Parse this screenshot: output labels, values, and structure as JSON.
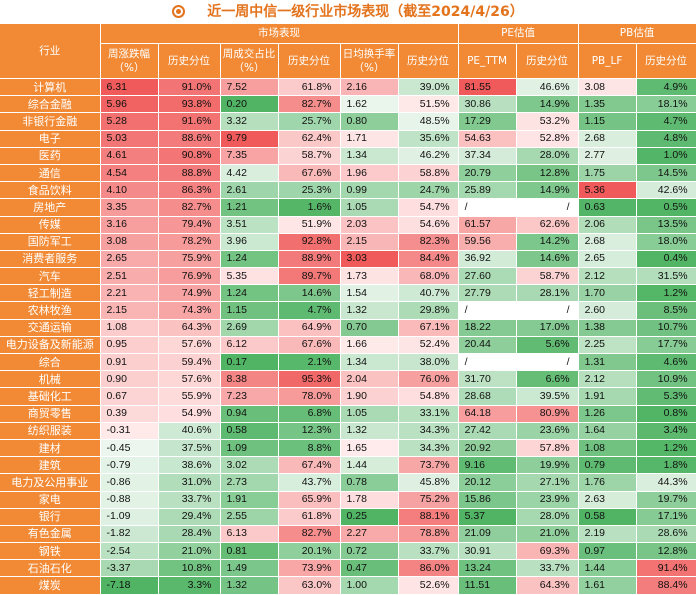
{
  "title": "近一周中信一级行业市场表现（截至2024/4/26）",
  "groups": {
    "market": "市场表现",
    "pe": "PE估值",
    "pb": "PB估值"
  },
  "headers": {
    "industry": "行业",
    "weekly_change": "周涨跌幅（%）",
    "hist_pct_1": "历史分位",
    "turnover_ratio": "周成交占比（%）",
    "hist_pct_2": "历史分位",
    "daily_turnover": "日均换手率（%）",
    "hist_pct_3": "历史分位",
    "pe_ttm": "PE_TTM",
    "hist_pct_4": "历史分位",
    "pb_lf": "PB_LF",
    "hist_pct_5": "历史分位"
  },
  "colors": {
    "header": "#f28a35",
    "title": "#e3731c"
  },
  "rows": [
    [
      "计算机",
      "6.31",
      "91.0%",
      "7.52",
      "61.8%",
      "2.16",
      "39.0%",
      "81.55",
      "46.6%",
      "3.08",
      "4.9%"
    ],
    [
      "综合金融",
      "5.96",
      "93.8%",
      "0.20",
      "82.7%",
      "1.62",
      "51.5%",
      "30.86",
      "14.9%",
      "1.35",
      "18.1%"
    ],
    [
      "非银行金融",
      "5.28",
      "91.6%",
      "3.32",
      "25.7%",
      "0.80",
      "48.5%",
      "17.29",
      "53.2%",
      "1.15",
      "4.7%"
    ],
    [
      "电子",
      "5.03",
      "88.6%",
      "9.79",
      "62.4%",
      "1.71",
      "35.6%",
      "54.63",
      "52.8%",
      "2.68",
      "4.8%"
    ],
    [
      "医药",
      "4.61",
      "90.8%",
      "7.35",
      "58.7%",
      "1.34",
      "46.2%",
      "37.34",
      "28.0%",
      "2.77",
      "1.0%"
    ],
    [
      "通信",
      "4.54",
      "88.8%",
      "4.42",
      "67.6%",
      "1.96",
      "58.8%",
      "20.79",
      "12.8%",
      "1.75",
      "14.5%"
    ],
    [
      "食品饮料",
      "4.10",
      "86.3%",
      "2.61",
      "25.3%",
      "0.99",
      "24.7%",
      "25.89",
      "14.9%",
      "5.36",
      "42.6%"
    ],
    [
      "房地产",
      "3.35",
      "82.7%",
      "1.21",
      "1.6%",
      "1.05",
      "54.7%",
      "/",
      "/",
      "0.63",
      "0.5%"
    ],
    [
      "传媒",
      "3.16",
      "79.4%",
      "3.51",
      "51.9%",
      "2.03",
      "54.6%",
      "61.57",
      "62.6%",
      "2.06",
      "13.5%"
    ],
    [
      "国防军工",
      "3.08",
      "78.2%",
      "3.96",
      "92.8%",
      "2.15",
      "82.3%",
      "59.56",
      "14.2%",
      "2.68",
      "18.0%"
    ],
    [
      "消费者服务",
      "2.65",
      "75.9%",
      "1.24",
      "88.9%",
      "3.03",
      "84.4%",
      "36.92",
      "14.6%",
      "2.65",
      "0.4%"
    ],
    [
      "汽车",
      "2.51",
      "76.9%",
      "5.35",
      "89.7%",
      "1.73",
      "68.0%",
      "27.60",
      "58.7%",
      "2.12",
      "31.5%"
    ],
    [
      "轻工制造",
      "2.21",
      "74.9%",
      "1.24",
      "14.6%",
      "1.54",
      "40.7%",
      "27.79",
      "28.1%",
      "1.70",
      "1.2%"
    ],
    [
      "农林牧渔",
      "2.15",
      "74.3%",
      "1.15",
      "4.7%",
      "1.32",
      "29.8%",
      "/",
      "/",
      "2.60",
      "8.5%"
    ],
    [
      "交通运输",
      "1.08",
      "64.3%",
      "2.69",
      "64.9%",
      "0.70",
      "67.1%",
      "18.22",
      "17.0%",
      "1.38",
      "10.7%"
    ],
    [
      "电力设备及新能源",
      "0.95",
      "57.6%",
      "6.12",
      "67.6%",
      "1.66",
      "52.4%",
      "20.44",
      "5.6%",
      "2.25",
      "17.7%"
    ],
    [
      "综合",
      "0.91",
      "59.4%",
      "0.17",
      "2.1%",
      "1.34",
      "38.0%",
      "/",
      "/",
      "1.31",
      "4.6%"
    ],
    [
      "机械",
      "0.90",
      "57.6%",
      "8.38",
      "95.3%",
      "2.04",
      "76.0%",
      "31.70",
      "6.6%",
      "2.12",
      "10.9%"
    ],
    [
      "基础化工",
      "0.67",
      "55.9%",
      "7.23",
      "78.0%",
      "1.90",
      "54.8%",
      "28.68",
      "39.5%",
      "1.91",
      "5.3%"
    ],
    [
      "商贸零售",
      "0.39",
      "54.9%",
      "0.94",
      "6.8%",
      "1.05",
      "33.1%",
      "64.18",
      "80.9%",
      "1.26",
      "0.8%"
    ],
    [
      "纺织服装",
      "-0.31",
      "40.6%",
      "0.58",
      "12.3%",
      "1.32",
      "34.3%",
      "27.42",
      "23.6%",
      "1.64",
      "3.4%"
    ],
    [
      "建材",
      "-0.45",
      "37.5%",
      "1.09",
      "8.8%",
      "1.65",
      "34.3%",
      "20.92",
      "57.8%",
      "1.08",
      "1.2%"
    ],
    [
      "建筑",
      "-0.79",
      "38.6%",
      "3.02",
      "67.4%",
      "1.44",
      "73.7%",
      "9.16",
      "19.9%",
      "0.79",
      "1.8%"
    ],
    [
      "电力及公用事业",
      "-0.86",
      "31.0%",
      "2.73",
      "43.7%",
      "0.78",
      "45.8%",
      "20.12",
      "27.1%",
      "1.76",
      "44.3%"
    ],
    [
      "家电",
      "-0.88",
      "33.7%",
      "1.91",
      "65.9%",
      "1.78",
      "75.2%",
      "15.86",
      "23.9%",
      "2.63",
      "19.7%"
    ],
    [
      "银行",
      "-1.09",
      "29.4%",
      "2.55",
      "61.8%",
      "0.25",
      "88.1%",
      "5.37",
      "28.0%",
      "0.58",
      "17.1%"
    ],
    [
      "有色金属",
      "-1.82",
      "28.4%",
      "6.13",
      "82.7%",
      "2.27",
      "78.8%",
      "21.09",
      "21.0%",
      "2.19",
      "28.6%"
    ],
    [
      "钢铁",
      "-2.54",
      "21.0%",
      "0.81",
      "20.1%",
      "0.72",
      "33.7%",
      "30.91",
      "69.3%",
      "0.97",
      "12.8%"
    ],
    [
      "石油石化",
      "-3.37",
      "10.8%",
      "1.49",
      "73.9%",
      "0.47",
      "86.0%",
      "13.24",
      "33.7%",
      "1.44",
      "91.4%"
    ],
    [
      "煤炭",
      "-7.18",
      "3.3%",
      "1.32",
      "63.0%",
      "1.00",
      "52.6%",
      "11.51",
      "64.3%",
      "1.61",
      "88.4%"
    ]
  ]
}
